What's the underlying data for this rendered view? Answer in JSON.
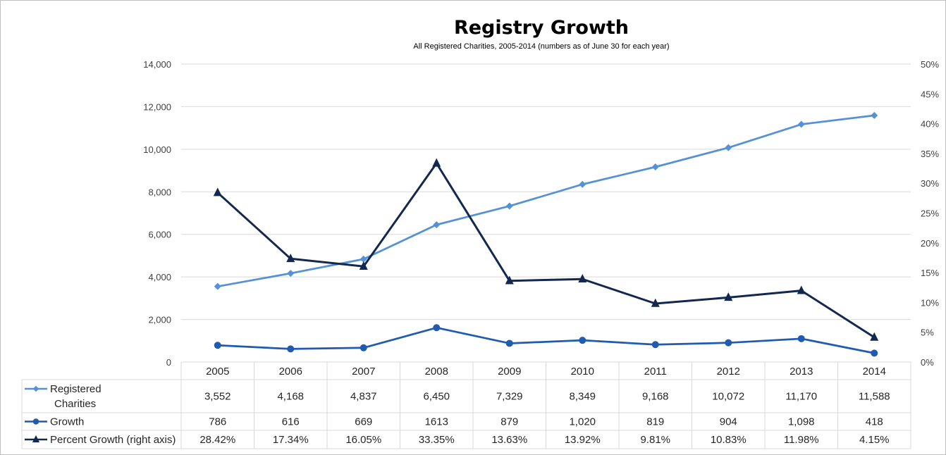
{
  "chart_data": {
    "type": "line",
    "title": "Registry Growth",
    "subtitle": "All Registered Charities, 2005-2014 (numbers as of June 30 for each year)",
    "categories": [
      "2005",
      "2006",
      "2007",
      "2008",
      "2009",
      "2010",
      "2011",
      "2012",
      "2013",
      "2014"
    ],
    "y_left": {
      "range": [
        0,
        14000
      ],
      "ticks": [
        0,
        2000,
        4000,
        6000,
        8000,
        10000,
        12000,
        14000
      ],
      "tick_labels": [
        "0",
        "2,000",
        "4,000",
        "6,000",
        "8,000",
        "10,000",
        "12,000",
        "14,000"
      ]
    },
    "y_right": {
      "range": [
        0,
        50
      ],
      "ticks": [
        0,
        5,
        10,
        15,
        20,
        25,
        30,
        35,
        40,
        45,
        50
      ],
      "tick_labels": [
        "0%",
        "5%",
        "10%",
        "15%",
        "20%",
        "25%",
        "30%",
        "35%",
        "40%",
        "45%",
        "50%"
      ]
    },
    "grid": true,
    "legend": "data-table",
    "series": [
      {
        "name_lines": [
          "Registered",
          "Charities"
        ],
        "axis": "left",
        "marker": "diamond",
        "color": "#5591d8",
        "values": [
          3552,
          4168,
          4837,
          6450,
          7329,
          8349,
          9168,
          10072,
          11170,
          11588
        ],
        "labels": [
          "3,552",
          "4,168",
          "4,837",
          "6,450",
          "7,329",
          "8,349",
          "9,168",
          "10,072",
          "11,170",
          "11,588"
        ]
      },
      {
        "name_lines": [
          "Growth"
        ],
        "axis": "left",
        "marker": "circle",
        "color": "#1f5bb0",
        "values": [
          786,
          616,
          669,
          1613,
          879,
          1020,
          819,
          904,
          1098,
          418
        ],
        "labels": [
          "786",
          "616",
          "669",
          "1613",
          "879",
          "1,020",
          "819",
          "904",
          "1,098",
          "418"
        ]
      },
      {
        "name_lines": [
          "Percent Growth (right axis)"
        ],
        "axis": "right",
        "marker": "triangle",
        "color": "#13284f",
        "values": [
          28.42,
          17.34,
          16.05,
          33.35,
          13.63,
          13.92,
          9.81,
          10.83,
          11.98,
          4.15
        ],
        "labels": [
          "28.42%",
          "17.34%",
          "16.05%",
          "33.35%",
          "13.63%",
          "13.92%",
          "9.81%",
          "10.83%",
          "11.98%",
          "4.15%"
        ]
      }
    ]
  }
}
